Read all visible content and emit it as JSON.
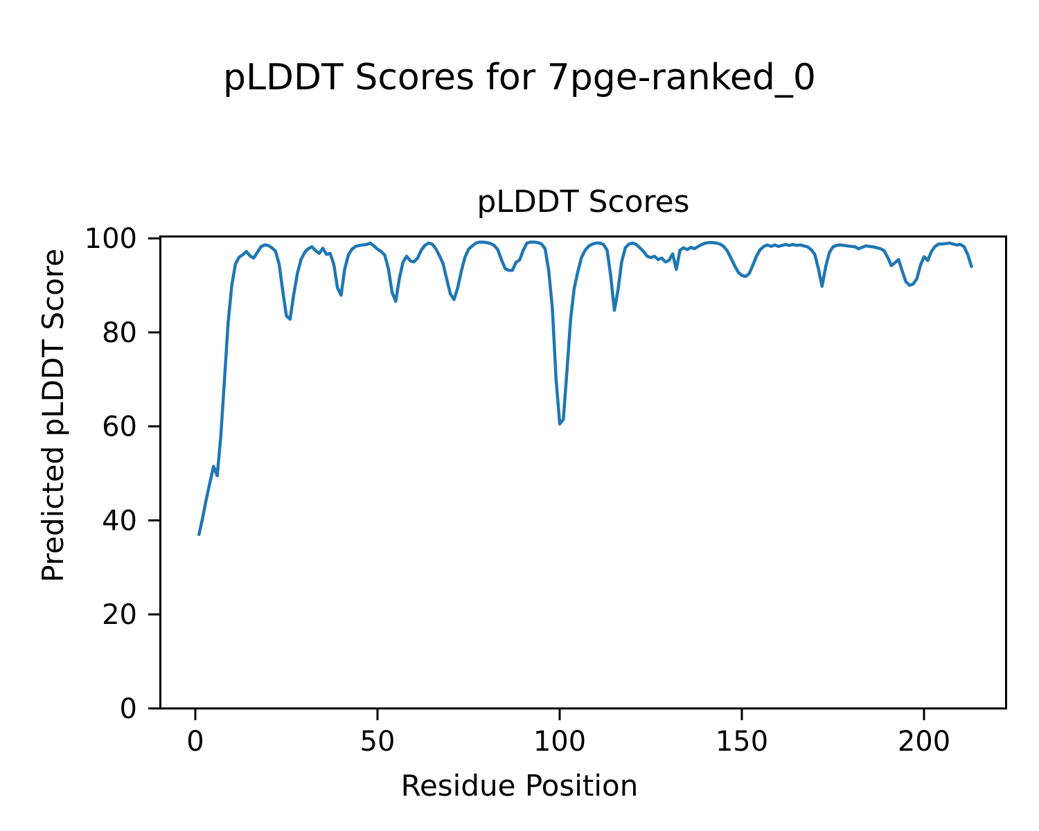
{
  "page": {
    "title": "pLDDT Scores for 7pge-ranked_0"
  },
  "chart_data": {
    "type": "line",
    "title": "pLDDT Scores",
    "xlabel": "Residue Position",
    "ylabel": "Predicted pLDDT Score",
    "xlim": [
      -9.6,
      222.5
    ],
    "ylim": [
      0,
      100.4
    ],
    "xticks": [
      0,
      50,
      100,
      150,
      200
    ],
    "yticks": [
      0,
      20,
      40,
      60,
      80,
      100
    ],
    "grid": false,
    "legend_position": "none",
    "line_color": "#1f77b4",
    "series": [
      {
        "name": "pLDDT",
        "x_start": 1,
        "y": [
          37.0,
          40.5,
          44.5,
          48.0,
          51.5,
          49.5,
          58.0,
          70.0,
          82.0,
          90.0,
          94.5,
          96.0,
          96.5,
          97.2,
          96.3,
          95.8,
          97.0,
          98.2,
          98.6,
          98.5,
          98.0,
          97.3,
          94.5,
          88.7,
          83.5,
          82.8,
          88.0,
          92.5,
          95.5,
          97.0,
          97.8,
          98.2,
          97.4,
          96.8,
          97.9,
          96.6,
          96.8,
          94.5,
          89.5,
          87.9,
          93.5,
          96.5,
          97.7,
          98.3,
          98.5,
          98.6,
          98.7,
          99.0,
          98.4,
          97.7,
          97.2,
          96.4,
          93.5,
          88.5,
          86.6,
          91.5,
          95.0,
          96.2,
          95.2,
          95.0,
          95.8,
          97.5,
          98.5,
          99.0,
          98.8,
          97.8,
          96.3,
          94.6,
          91.3,
          88.2,
          87.0,
          89.5,
          93.0,
          96.0,
          97.7,
          98.4,
          99.0,
          99.2,
          99.2,
          99.1,
          98.9,
          98.5,
          97.6,
          95.5,
          93.6,
          93.2,
          93.2,
          94.9,
          95.4,
          97.5,
          99.0,
          99.2,
          99.2,
          99.1,
          98.8,
          97.8,
          93.0,
          85.0,
          70.0,
          60.5,
          61.5,
          72.0,
          83.0,
          89.5,
          93.0,
          96.0,
          97.5,
          98.4,
          98.8,
          99.0,
          99.0,
          98.7,
          97.5,
          92.0,
          84.7,
          89.0,
          95.0,
          98.0,
          98.8,
          99.0,
          98.7,
          98.0,
          97.2,
          96.2,
          95.9,
          96.2,
          95.5,
          95.8,
          95.0,
          95.3,
          96.7,
          93.4,
          97.5,
          98.0,
          97.6,
          98.1,
          97.8,
          98.3,
          98.7,
          99.0,
          99.1,
          99.1,
          99.0,
          98.8,
          98.3,
          97.3,
          95.8,
          94.2,
          92.8,
          92.1,
          91.9,
          92.5,
          94.3,
          96.2,
          97.6,
          98.3,
          98.6,
          98.3,
          98.6,
          98.3,
          98.5,
          98.7,
          98.5,
          98.7,
          98.5,
          98.6,
          98.4,
          98.2,
          97.6,
          96.6,
          93.5,
          89.8,
          94.0,
          97.0,
          98.2,
          98.5,
          98.6,
          98.5,
          98.4,
          98.3,
          98.2,
          97.8,
          98.1,
          98.4,
          98.3,
          98.2,
          98.0,
          97.8,
          97.4,
          96.0,
          94.2,
          94.8,
          95.5,
          93.0,
          90.8,
          90.0,
          90.3,
          91.4,
          94.3,
          96.1,
          95.3,
          97.2,
          98.3,
          98.8,
          98.8,
          98.9,
          99.0,
          98.8,
          98.6,
          98.7,
          98.2,
          96.5,
          94.0
        ]
      }
    ]
  }
}
